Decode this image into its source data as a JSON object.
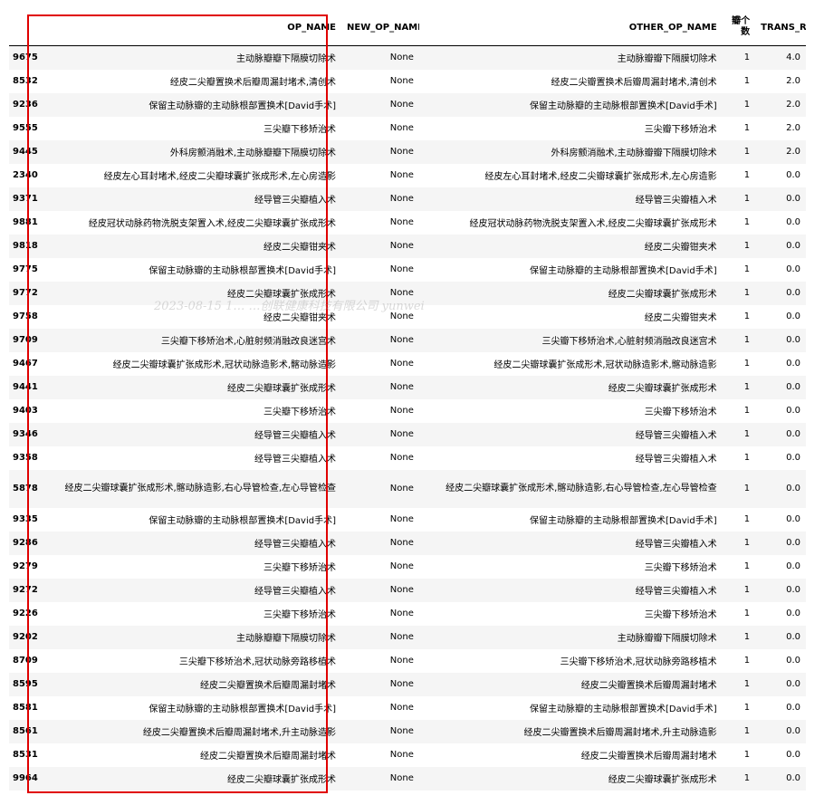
{
  "table": {
    "headers": {
      "index": "",
      "op_name": "OP_NAME",
      "new_op_name": "NEW_OP_NAME",
      "other_op_name": "OTHER_OP_NAME",
      "count": "瓣个数",
      "trans_rbc": "TRANS_RBC"
    },
    "rows": [
      {
        "idx": "9675",
        "op": "主动脉瓣瓣下隔膜切除术",
        "new": "None",
        "other": "主动脉瓣瓣下隔膜切除术",
        "cnt": "1",
        "rbc": "4.0"
      },
      {
        "idx": "8532",
        "op": "经皮二尖瓣置换术后瓣周漏封堵术,清创术",
        "new": "None",
        "other": "经皮二尖瓣置换术后瓣周漏封堵术,清创术",
        "cnt": "1",
        "rbc": "2.0"
      },
      {
        "idx": "9236",
        "op": "保留主动脉瓣的主动脉根部置换术[David手术]",
        "new": "None",
        "other": "保留主动脉瓣的主动脉根部置换术[David手术]",
        "cnt": "1",
        "rbc": "2.0"
      },
      {
        "idx": "9555",
        "op": "三尖瓣下移矫治术",
        "new": "None",
        "other": "三尖瓣下移矫治术",
        "cnt": "1",
        "rbc": "2.0"
      },
      {
        "idx": "9445",
        "op": "外科房颤消融术,主动脉瓣瓣下隔膜切除术",
        "new": "None",
        "other": "外科房颤消融术,主动脉瓣瓣下隔膜切除术",
        "cnt": "1",
        "rbc": "2.0"
      },
      {
        "idx": "2340",
        "op": "经皮左心耳封堵术,经皮二尖瓣球囊扩张成形术,左心房造影",
        "new": "None",
        "other": "经皮左心耳封堵术,经皮二尖瓣球囊扩张成形术,左心房造影",
        "cnt": "1",
        "rbc": "0.0"
      },
      {
        "idx": "9371",
        "op": "经导管三尖瓣植入术",
        "new": "None",
        "other": "经导管三尖瓣植入术",
        "cnt": "1",
        "rbc": "0.0"
      },
      {
        "idx": "9881",
        "op": "经皮冠状动脉药物洗脱支架置入术,经皮二尖瓣球囊扩张成形术",
        "new": "None",
        "other": "经皮冠状动脉药物洗脱支架置入术,经皮二尖瓣球囊扩张成形术",
        "cnt": "1",
        "rbc": "0.0"
      },
      {
        "idx": "9818",
        "op": "经皮二尖瓣钳夹术",
        "new": "None",
        "other": "经皮二尖瓣钳夹术",
        "cnt": "1",
        "rbc": "0.0"
      },
      {
        "idx": "9775",
        "op": "保留主动脉瓣的主动脉根部置换术[David手术]",
        "new": "None",
        "other": "保留主动脉瓣的主动脉根部置换术[David手术]",
        "cnt": "1",
        "rbc": "0.0"
      },
      {
        "idx": "9772",
        "op": "经皮二尖瓣球囊扩张成形术",
        "new": "None",
        "other": "经皮二尖瓣球囊扩张成形术",
        "cnt": "1",
        "rbc": "0.0"
      },
      {
        "idx": "9758",
        "op": "经皮二尖瓣钳夹术",
        "new": "None",
        "other": "经皮二尖瓣钳夹术",
        "cnt": "1",
        "rbc": "0.0"
      },
      {
        "idx": "9709",
        "op": "三尖瓣下移矫治术,心脏射频消融改良迷宫术",
        "new": "None",
        "other": "三尖瓣下移矫治术,心脏射频消融改良迷宫术",
        "cnt": "1",
        "rbc": "0.0"
      },
      {
        "idx": "9467",
        "op": "经皮二尖瓣球囊扩张成形术,冠状动脉造影术,髂动脉造影",
        "new": "None",
        "other": "经皮二尖瓣球囊扩张成形术,冠状动脉造影术,髂动脉造影",
        "cnt": "1",
        "rbc": "0.0"
      },
      {
        "idx": "9441",
        "op": "经皮二尖瓣球囊扩张成形术",
        "new": "None",
        "other": "经皮二尖瓣球囊扩张成形术",
        "cnt": "1",
        "rbc": "0.0"
      },
      {
        "idx": "9403",
        "op": "三尖瓣下移矫治术",
        "new": "None",
        "other": "三尖瓣下移矫治术",
        "cnt": "1",
        "rbc": "0.0"
      },
      {
        "idx": "9346",
        "op": "经导管三尖瓣植入术",
        "new": "None",
        "other": "经导管三尖瓣植入术",
        "cnt": "1",
        "rbc": "0.0"
      },
      {
        "idx": "9358",
        "op": "经导管三尖瓣植入术",
        "new": "None",
        "other": "经导管三尖瓣植入术",
        "cnt": "1",
        "rbc": "0.0"
      },
      {
        "idx": "5878",
        "op": "经皮二尖瓣球囊扩张成形术,髂动脉造影,右心导管检查,左心导管检查",
        "new": "None",
        "other": "经皮二尖瓣球囊扩张成形术,髂动脉造影,右心导管检查,左心导管检查",
        "cnt": "1",
        "rbc": "0.0"
      },
      {
        "idx": "9335",
        "op": "保留主动脉瓣的主动脉根部置换术[David手术]",
        "new": "None",
        "other": "保留主动脉瓣的主动脉根部置换术[David手术]",
        "cnt": "1",
        "rbc": "0.0"
      },
      {
        "idx": "9286",
        "op": "经导管三尖瓣植入术",
        "new": "None",
        "other": "经导管三尖瓣植入术",
        "cnt": "1",
        "rbc": "0.0"
      },
      {
        "idx": "9279",
        "op": "三尖瓣下移矫治术",
        "new": "None",
        "other": "三尖瓣下移矫治术",
        "cnt": "1",
        "rbc": "0.0"
      },
      {
        "idx": "9272",
        "op": "经导管三尖瓣植入术",
        "new": "None",
        "other": "经导管三尖瓣植入术",
        "cnt": "1",
        "rbc": "0.0"
      },
      {
        "idx": "9226",
        "op": "三尖瓣下移矫治术",
        "new": "None",
        "other": "三尖瓣下移矫治术",
        "cnt": "1",
        "rbc": "0.0"
      },
      {
        "idx": "9202",
        "op": "主动脉瓣瓣下隔膜切除术",
        "new": "None",
        "other": "主动脉瓣瓣下隔膜切除术",
        "cnt": "1",
        "rbc": "0.0"
      },
      {
        "idx": "8709",
        "op": "三尖瓣下移矫治术,冠状动脉旁路移植术",
        "new": "None",
        "other": "三尖瓣下移矫治术,冠状动脉旁路移植术",
        "cnt": "1",
        "rbc": "0.0"
      },
      {
        "idx": "8595",
        "op": "经皮二尖瓣置换术后瓣周漏封堵术",
        "new": "None",
        "other": "经皮二尖瓣置换术后瓣周漏封堵术",
        "cnt": "1",
        "rbc": "0.0"
      },
      {
        "idx": "8581",
        "op": "保留主动脉瓣的主动脉根部置换术[David手术]",
        "new": "None",
        "other": "保留主动脉瓣的主动脉根部置换术[David手术]",
        "cnt": "1",
        "rbc": "0.0"
      },
      {
        "idx": "8561",
        "op": "经皮二尖瓣置换术后瓣周漏封堵术,升主动脉造影",
        "new": "None",
        "other": "经皮二尖瓣置换术后瓣周漏封堵术,升主动脉造影",
        "cnt": "1",
        "rbc": "0.0"
      },
      {
        "idx": "8531",
        "op": "经皮二尖瓣置换术后瓣周漏封堵术",
        "new": "None",
        "other": "经皮二尖瓣置换术后瓣周漏封堵术",
        "cnt": "1",
        "rbc": "0.0"
      },
      {
        "idx": "9964",
        "op": "经皮二尖瓣球囊扩张成形术",
        "new": "None",
        "other": "经皮二尖瓣球囊扩张成形术",
        "cnt": "1",
        "rbc": "0.0"
      }
    ]
  },
  "watermark": "2023-08-15 1… …创联健康科技有限公司  yunwei",
  "highlight_color": "#e00000"
}
